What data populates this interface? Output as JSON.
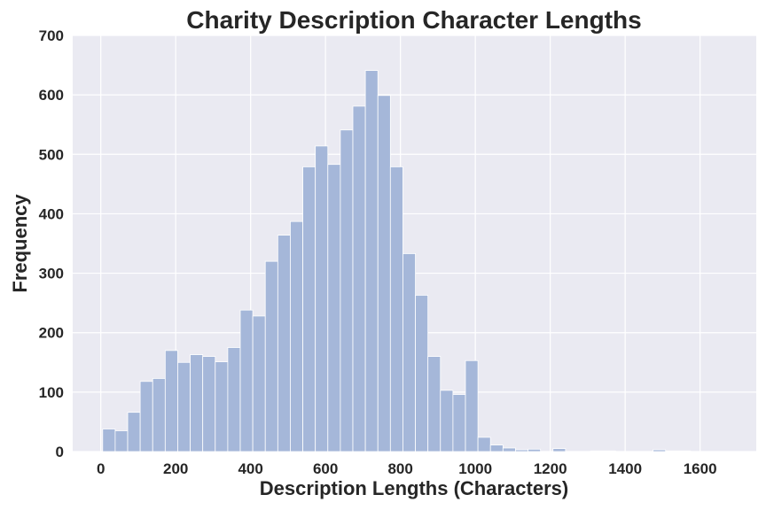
{
  "chart_data": {
    "type": "bar",
    "title": "Charity Description Character Lengths",
    "xlabel": "Description Lengths (Characters)",
    "ylabel": "Frequency",
    "xlim": [
      -75,
      1750
    ],
    "ylim": [
      0,
      700
    ],
    "xticks": [
      0,
      200,
      400,
      600,
      800,
      1000,
      1200,
      1400,
      1600
    ],
    "yticks": [
      0,
      100,
      200,
      300,
      400,
      500,
      600,
      700
    ],
    "grid": true,
    "bin_width": 33.4,
    "bin_start": 5,
    "values": [
      38,
      35,
      66,
      118,
      123,
      170,
      150,
      163,
      160,
      151,
      175,
      238,
      228,
      320,
      364,
      387,
      479,
      514,
      483,
      541,
      581,
      641,
      599,
      479,
      333,
      263,
      160,
      103,
      96,
      153,
      24,
      11,
      6,
      3,
      4,
      0,
      5,
      0,
      0,
      1,
      1,
      0,
      0,
      0,
      3,
      1,
      1,
      0,
      0,
      0
    ],
    "colors": {
      "bar": "#a5b7d9",
      "bar_edge": "#ffffff",
      "plot_background": "#eaeaf2",
      "grid": "#ffffff",
      "text": "#262626"
    }
  }
}
